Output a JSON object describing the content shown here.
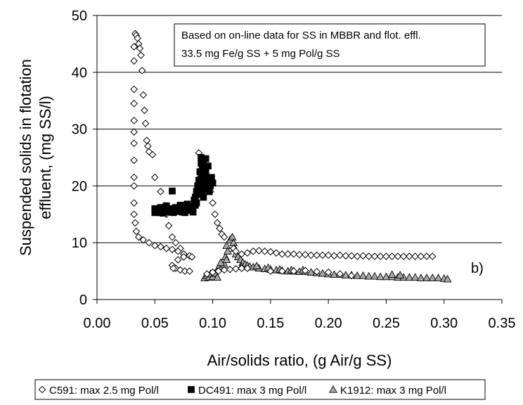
{
  "chart_data": {
    "type": "scatter",
    "xlabel": "Air/solids ratio, (g Air/g SS)",
    "ylabel_lines": [
      "Suspended solids in flotation",
      "effluent, (mg SS/l)"
    ],
    "xlim": [
      0,
      0.35
    ],
    "ylim": [
      0,
      50
    ],
    "x_ticks": [
      "0.00",
      "0.05",
      "0.10",
      "0.15",
      "0.20",
      "0.25",
      "0.30",
      "0.35"
    ],
    "y_ticks": [
      "0",
      "10",
      "20",
      "30",
      "40",
      "50"
    ],
    "grid": "horizontal",
    "annotation_lines": [
      "Based on on-line data for SS in MBBR and flot. effl.",
      "33.5 mg Fe/g SS + 5 mg Pol/g SS"
    ],
    "panel_label": "b)",
    "legend_position": "bottom",
    "series": [
      {
        "name": "C591: max 2.5 mg Pol/l",
        "marker": "diamond-open",
        "points": [
          [
            0.033,
            46.8
          ],
          [
            0.034,
            46.5
          ],
          [
            0.035,
            46.0
          ],
          [
            0.036,
            45.0
          ],
          [
            0.037,
            44.2
          ],
          [
            0.038,
            43.0
          ],
          [
            0.039,
            40.3
          ],
          [
            0.04,
            36.0
          ],
          [
            0.041,
            33.3
          ],
          [
            0.042,
            31.0
          ],
          [
            0.043,
            28.0
          ],
          [
            0.044,
            27.0
          ],
          [
            0.045,
            26.0
          ],
          [
            0.048,
            25.5
          ],
          [
            0.05,
            21.5
          ],
          [
            0.055,
            19.0
          ],
          [
            0.058,
            16.5
          ],
          [
            0.06,
            15.0
          ],
          [
            0.062,
            13.0
          ],
          [
            0.065,
            11.0
          ],
          [
            0.068,
            10.0
          ],
          [
            0.072,
            9.0
          ],
          [
            0.075,
            8.0
          ],
          [
            0.032,
            44.5
          ],
          [
            0.032,
            42.0
          ],
          [
            0.032,
            37.0
          ],
          [
            0.032,
            34.5
          ],
          [
            0.032,
            31.5
          ],
          [
            0.032,
            29.5
          ],
          [
            0.032,
            27.5
          ],
          [
            0.032,
            24.5
          ],
          [
            0.032,
            21.5
          ],
          [
            0.032,
            20.0
          ],
          [
            0.032,
            17.0
          ],
          [
            0.032,
            15.0
          ],
          [
            0.033,
            13.5
          ],
          [
            0.034,
            12.0
          ],
          [
            0.036,
            11.0
          ],
          [
            0.04,
            10.5
          ],
          [
            0.045,
            10.0
          ],
          [
            0.05,
            9.5
          ],
          [
            0.055,
            9.3
          ],
          [
            0.06,
            9.0
          ],
          [
            0.065,
            8.8
          ],
          [
            0.07,
            8.5
          ],
          [
            0.075,
            8.0
          ],
          [
            0.08,
            7.7
          ],
          [
            0.082,
            7.5
          ],
          [
            0.068,
            5.5
          ],
          [
            0.072,
            5.2
          ],
          [
            0.076,
            5.0
          ],
          [
            0.08,
            5.0
          ],
          [
            0.065,
            6.0
          ],
          [
            0.066,
            5.5
          ],
          [
            0.07,
            7.0
          ],
          [
            0.075,
            7.5
          ],
          [
            0.088,
            25.8
          ],
          [
            0.09,
            25.0
          ],
          [
            0.092,
            24.5
          ],
          [
            0.094,
            23.0
          ],
          [
            0.096,
            21.0
          ],
          [
            0.098,
            19.0
          ],
          [
            0.1,
            17.0
          ],
          [
            0.102,
            15.0
          ],
          [
            0.104,
            13.5
          ],
          [
            0.106,
            12.5
          ],
          [
            0.108,
            11.5
          ],
          [
            0.11,
            11.0
          ],
          [
            0.095,
            4.5
          ],
          [
            0.1,
            4.8
          ],
          [
            0.105,
            5.0
          ],
          [
            0.11,
            5.2
          ],
          [
            0.115,
            5.3
          ],
          [
            0.12,
            5.4
          ],
          [
            0.125,
            5.5
          ],
          [
            0.13,
            5.5
          ],
          [
            0.118,
            9.0
          ],
          [
            0.12,
            8.5
          ],
          [
            0.125,
            8.0
          ],
          [
            0.13,
            8.2
          ],
          [
            0.135,
            8.5
          ],
          [
            0.14,
            8.6
          ],
          [
            0.145,
            8.5
          ],
          [
            0.15,
            8.4
          ],
          [
            0.155,
            8.2
          ],
          [
            0.16,
            8.0
          ],
          [
            0.165,
            8.0
          ],
          [
            0.17,
            8.0
          ],
          [
            0.175,
            7.9
          ],
          [
            0.18,
            7.9
          ],
          [
            0.185,
            7.8
          ],
          [
            0.19,
            7.8
          ],
          [
            0.195,
            7.8
          ],
          [
            0.2,
            7.8
          ],
          [
            0.205,
            7.7
          ],
          [
            0.21,
            7.8
          ],
          [
            0.215,
            7.7
          ],
          [
            0.22,
            7.7
          ],
          [
            0.225,
            7.6
          ],
          [
            0.23,
            7.7
          ],
          [
            0.235,
            7.6
          ],
          [
            0.24,
            7.6
          ],
          [
            0.245,
            7.6
          ],
          [
            0.25,
            7.6
          ],
          [
            0.255,
            7.6
          ],
          [
            0.26,
            7.6
          ],
          [
            0.265,
            7.6
          ],
          [
            0.27,
            7.6
          ],
          [
            0.275,
            7.6
          ],
          [
            0.28,
            7.6
          ],
          [
            0.285,
            7.6
          ],
          [
            0.29,
            7.6
          ],
          [
            0.15,
            5.0
          ],
          [
            0.16,
            5.0
          ],
          [
            0.17,
            5.0
          ],
          [
            0.18,
            5.1
          ],
          [
            0.19,
            4.9
          ],
          [
            0.2,
            4.8
          ],
          [
            0.21,
            4.5
          ],
          [
            0.22,
            4.2
          ]
        ]
      },
      {
        "name": "DC491: max 3 mg Pol/l",
        "marker": "square-filled",
        "points": [
          [
            0.05,
            15.3
          ],
          [
            0.05,
            16.0
          ],
          [
            0.052,
            15.6
          ],
          [
            0.054,
            15.3
          ],
          [
            0.055,
            16.2
          ],
          [
            0.057,
            15.2
          ],
          [
            0.059,
            15.8
          ],
          [
            0.06,
            16.5
          ],
          [
            0.062,
            15.4
          ],
          [
            0.064,
            16.0
          ],
          [
            0.065,
            19.1
          ],
          [
            0.066,
            15.3
          ],
          [
            0.068,
            16.2
          ],
          [
            0.07,
            15.5
          ],
          [
            0.072,
            16.6
          ],
          [
            0.074,
            15.4
          ],
          [
            0.075,
            16.0
          ],
          [
            0.076,
            15.3
          ],
          [
            0.078,
            16.8
          ],
          [
            0.08,
            15.7
          ],
          [
            0.082,
            16.3
          ],
          [
            0.083,
            15.4
          ],
          [
            0.084,
            17.5
          ],
          [
            0.085,
            18.0
          ],
          [
            0.085,
            16.6
          ],
          [
            0.086,
            19.0
          ],
          [
            0.086,
            17.0
          ],
          [
            0.087,
            20.0
          ],
          [
            0.087,
            18.5
          ],
          [
            0.088,
            21.0
          ],
          [
            0.088,
            19.5
          ],
          [
            0.089,
            22.5
          ],
          [
            0.089,
            20.5
          ],
          [
            0.09,
            24.0
          ],
          [
            0.09,
            21.5
          ],
          [
            0.091,
            23.0
          ],
          [
            0.091,
            19.0
          ],
          [
            0.092,
            22.0
          ],
          [
            0.092,
            18.0
          ],
          [
            0.093,
            21.0
          ],
          [
            0.093,
            20.0
          ],
          [
            0.094,
            24.8
          ],
          [
            0.094,
            22.5
          ],
          [
            0.095,
            21.5
          ],
          [
            0.095,
            19.5
          ],
          [
            0.096,
            20.5
          ],
          [
            0.096,
            23.5
          ],
          [
            0.097,
            21.0
          ],
          [
            0.097,
            19.0
          ],
          [
            0.098,
            20.0
          ],
          [
            0.099,
            21.5
          ],
          [
            0.1,
            20.5
          ],
          [
            0.09,
            25.0
          ],
          [
            0.092,
            24.0
          ]
        ]
      },
      {
        "name": "K1912: max 3 mg Pol/l",
        "marker": "triangle-gray",
        "points": [
          [
            0.093,
            3.8
          ],
          [
            0.095,
            4.2
          ],
          [
            0.097,
            3.9
          ],
          [
            0.098,
            4.5
          ],
          [
            0.1,
            4.0
          ],
          [
            0.102,
            4.6
          ],
          [
            0.104,
            3.9
          ],
          [
            0.105,
            5.5
          ],
          [
            0.106,
            6.0
          ],
          [
            0.108,
            5.8
          ],
          [
            0.11,
            6.2
          ],
          [
            0.111,
            7.5
          ],
          [
            0.112,
            9.5
          ],
          [
            0.113,
            8.5
          ],
          [
            0.115,
            10.5
          ],
          [
            0.117,
            11.0
          ],
          [
            0.118,
            10.0
          ],
          [
            0.119,
            9.0
          ],
          [
            0.12,
            8.0
          ],
          [
            0.122,
            7.5
          ],
          [
            0.124,
            7.0
          ],
          [
            0.126,
            6.5
          ],
          [
            0.128,
            6.2
          ],
          [
            0.13,
            6.0
          ],
          [
            0.132,
            5.8
          ],
          [
            0.135,
            5.7
          ],
          [
            0.14,
            5.5
          ],
          [
            0.145,
            5.4
          ],
          [
            0.15,
            5.3
          ],
          [
            0.155,
            5.2
          ],
          [
            0.16,
            5.1
          ],
          [
            0.165,
            5.0
          ],
          [
            0.17,
            5.0
          ],
          [
            0.175,
            4.9
          ],
          [
            0.18,
            4.9
          ],
          [
            0.185,
            4.8
          ],
          [
            0.19,
            4.7
          ],
          [
            0.195,
            4.6
          ],
          [
            0.2,
            4.5
          ],
          [
            0.205,
            4.4
          ],
          [
            0.21,
            4.4
          ],
          [
            0.215,
            4.3
          ],
          [
            0.22,
            4.3
          ],
          [
            0.225,
            4.2
          ],
          [
            0.23,
            4.2
          ],
          [
            0.235,
            4.1
          ],
          [
            0.24,
            4.1
          ],
          [
            0.245,
            4.0
          ],
          [
            0.25,
            4.0
          ],
          [
            0.255,
            4.0
          ],
          [
            0.26,
            3.9
          ],
          [
            0.265,
            3.9
          ],
          [
            0.27,
            3.9
          ],
          [
            0.275,
            3.9
          ],
          [
            0.28,
            3.8
          ],
          [
            0.285,
            3.8
          ],
          [
            0.29,
            3.8
          ],
          [
            0.295,
            3.8
          ],
          [
            0.3,
            3.7
          ],
          [
            0.303,
            3.6
          ],
          [
            0.255,
            4.4
          ],
          [
            0.262,
            4.3
          ],
          [
            0.107,
            6.5
          ],
          [
            0.112,
            7.0
          ],
          [
            0.125,
            5.8
          ],
          [
            0.138,
            5.9
          ],
          [
            0.148,
            5.6
          ],
          [
            0.158,
            5.3
          ],
          [
            0.168,
            5.2
          ],
          [
            0.178,
            5.2
          ]
        ]
      }
    ]
  }
}
